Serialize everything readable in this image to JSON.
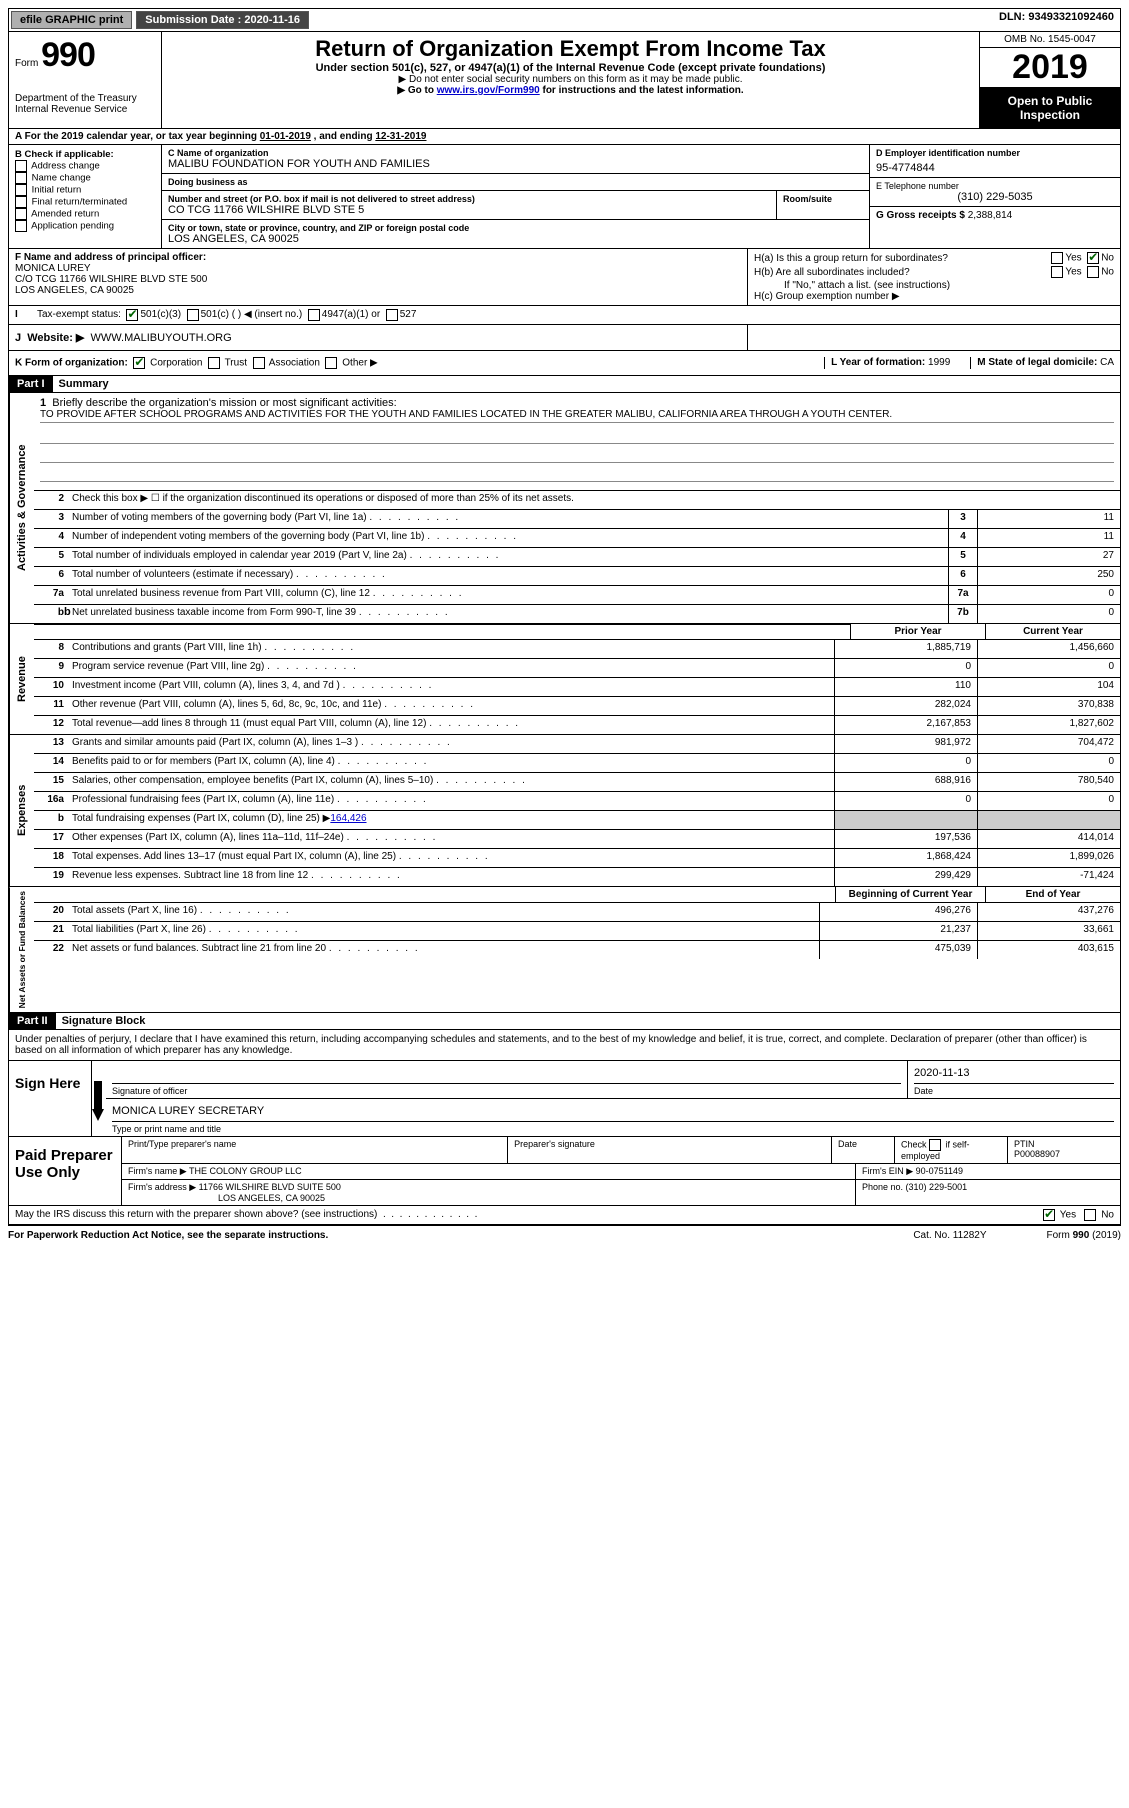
{
  "top": {
    "efile": "efile GRAPHIC print",
    "submission_label": "Submission Date : ",
    "submission_date": "2020-11-16",
    "dln_label": "DLN: ",
    "dln": "93493321092460"
  },
  "header": {
    "form_prefix": "Form",
    "form_number": "990",
    "dept1": "Department of the Treasury",
    "dept2": "Internal Revenue Service",
    "title": "Return of Organization Exempt From Income Tax",
    "sub": "Under section 501(c), 527, or 4947(a)(1) of the Internal Revenue Code (except private foundations)",
    "note1": "▶ Do not enter social security numbers on this form as it may be made public.",
    "note2_pre": "▶ Go to ",
    "note2_link": "www.irs.gov/Form990",
    "note2_post": " for instructions and the latest information.",
    "omb": "OMB No. 1545-0047",
    "year": "2019",
    "open": "Open to Public Inspection"
  },
  "lineA": {
    "text_pre": "A For the 2019 calendar year, or tax year beginning ",
    "begin": "01-01-2019",
    "mid": "   , and ending ",
    "end": "12-31-2019"
  },
  "B": {
    "label": "B Check if applicable:",
    "opts": [
      "Address change",
      "Name change",
      "Initial return",
      "Final return/terminated",
      "Amended return",
      "Application pending"
    ]
  },
  "C": {
    "name_lbl": "C Name of organization",
    "name": "MALIBU FOUNDATION FOR YOUTH AND FAMILIES",
    "dba_lbl": "Doing business as",
    "dba": "",
    "addr_lbl": "Number and street (or P.O. box if mail is not delivered to street address)",
    "addr": "CO TCG 11766 WILSHIRE BLVD STE 5",
    "suite_lbl": "Room/suite",
    "city_lbl": "City or town, state or province, country, and ZIP or foreign postal code",
    "city": "LOS ANGELES, CA  90025"
  },
  "D": {
    "lbl": "D Employer identification number",
    "val": "95-4774844"
  },
  "E": {
    "lbl": "E Telephone number",
    "val": "(310) 229-5035"
  },
  "G": {
    "lbl": "G Gross receipts $ ",
    "val": "2,388,814"
  },
  "F": {
    "lbl": "F Name and address of principal officer:",
    "name": "MONICA LUREY",
    "addr1": "C/O TCG 11766 WILSHIRE BLVD STE 500",
    "addr2": "LOS ANGELES, CA  90025"
  },
  "H": {
    "a": "H(a)  Is this a group return for subordinates?",
    "b": "H(b)  Are all subordinates included?",
    "b_note": "If \"No,\" attach a list. (see instructions)",
    "c": "H(c)  Group exemption number ▶",
    "yes": "Yes",
    "no": "No"
  },
  "I": {
    "lbl": "Tax-exempt status:",
    "o1": "501(c)(3)",
    "o2": "501(c) (   ) ◀ (insert no.)",
    "o3": "4947(a)(1) or",
    "o4": "527"
  },
  "J": {
    "lbl": "Website: ▶",
    "val": "WWW.MALIBUYOUTH.ORG"
  },
  "K": {
    "lbl": "K Form of organization:",
    "o1": "Corporation",
    "o2": "Trust",
    "o3": "Association",
    "o4": "Other ▶"
  },
  "L": {
    "lbl": "L Year of formation: ",
    "val": "1999"
  },
  "M": {
    "lbl": "M State of legal domicile: ",
    "val": "CA"
  },
  "part1": {
    "tab": "Part I",
    "title": "Summary"
  },
  "mission": {
    "q": "Briefly describe the organization's mission or most significant activities:",
    "text": "TO PROVIDE AFTER SCHOOL PROGRAMS AND ACTIVITIES FOR THE YOUTH AND FAMILIES LOCATED IN THE GREATER MALIBU, CALIFORNIA AREA THROUGH A YOUTH CENTER."
  },
  "gov": {
    "l2": "Check this box ▶ ☐ if the organization discontinued its operations or disposed of more than 25% of its net assets.",
    "rows": [
      {
        "n": "3",
        "d": "Number of voting members of the governing body (Part VI, line 1a)",
        "box": "3",
        "v": "11"
      },
      {
        "n": "4",
        "d": "Number of independent voting members of the governing body (Part VI, line 1b)",
        "box": "4",
        "v": "11"
      },
      {
        "n": "5",
        "d": "Total number of individuals employed in calendar year 2019 (Part V, line 2a)",
        "box": "5",
        "v": "27"
      },
      {
        "n": "6",
        "d": "Total number of volunteers (estimate if necessary)",
        "box": "6",
        "v": "250"
      },
      {
        "n": "7a",
        "d": "Total unrelated business revenue from Part VIII, column (C), line 12",
        "box": "7a",
        "v": "0"
      },
      {
        "n": "b",
        "d": "Net unrelated business taxable income from Form 990-T, line 39",
        "box": "7b",
        "v": "0"
      }
    ]
  },
  "colhdr": {
    "prior": "Prior Year",
    "current": "Current Year",
    "boy": "Beginning of Current Year",
    "eoy": "End of Year"
  },
  "rev": [
    {
      "n": "8",
      "d": "Contributions and grants (Part VIII, line 1h)",
      "p": "1,885,719",
      "c": "1,456,660"
    },
    {
      "n": "9",
      "d": "Program service revenue (Part VIII, line 2g)",
      "p": "0",
      "c": "0"
    },
    {
      "n": "10",
      "d": "Investment income (Part VIII, column (A), lines 3, 4, and 7d )",
      "p": "110",
      "c": "104"
    },
    {
      "n": "11",
      "d": "Other revenue (Part VIII, column (A), lines 5, 6d, 8c, 9c, 10c, and 11e)",
      "p": "282,024",
      "c": "370,838"
    },
    {
      "n": "12",
      "d": "Total revenue—add lines 8 through 11 (must equal Part VIII, column (A), line 12)",
      "p": "2,167,853",
      "c": "1,827,602"
    }
  ],
  "exp": [
    {
      "n": "13",
      "d": "Grants and similar amounts paid (Part IX, column (A), lines 1–3 )",
      "p": "981,972",
      "c": "704,472"
    },
    {
      "n": "14",
      "d": "Benefits paid to or for members (Part IX, column (A), line 4)",
      "p": "0",
      "c": "0"
    },
    {
      "n": "15",
      "d": "Salaries, other compensation, employee benefits (Part IX, column (A), lines 5–10)",
      "p": "688,916",
      "c": "780,540"
    },
    {
      "n": "16a",
      "d": "Professional fundraising fees (Part IX, column (A), line 11e)",
      "p": "0",
      "c": "0"
    },
    {
      "n": "b",
      "d": "Total fundraising expenses (Part IX, column (D), line 25) ▶",
      "v": "164,426",
      "shade": true
    },
    {
      "n": "17",
      "d": "Other expenses (Part IX, column (A), lines 11a–11d, 11f–24e)",
      "p": "197,536",
      "c": "414,014"
    },
    {
      "n": "18",
      "d": "Total expenses. Add lines 13–17 (must equal Part IX, column (A), line 25)",
      "p": "1,868,424",
      "c": "1,899,026"
    },
    {
      "n": "19",
      "d": "Revenue less expenses. Subtract line 18 from line 12",
      "p": "299,429",
      "c": "-71,424"
    }
  ],
  "net": [
    {
      "n": "20",
      "d": "Total assets (Part X, line 16)",
      "p": "496,276",
      "c": "437,276"
    },
    {
      "n": "21",
      "d": "Total liabilities (Part X, line 26)",
      "p": "21,237",
      "c": "33,661"
    },
    {
      "n": "22",
      "d": "Net assets or fund balances. Subtract line 21 from line 20",
      "p": "475,039",
      "c": "403,615"
    }
  ],
  "vlabels": {
    "gov": "Activities & Governance",
    "rev": "Revenue",
    "exp": "Expenses",
    "net": "Net Assets or Fund Balances"
  },
  "part2": {
    "tab": "Part II",
    "title": "Signature Block"
  },
  "sig": {
    "intro": "Under penalties of perjury, I declare that I have examined this return, including accompanying schedules and statements, and to the best of my knowledge and belief, it is true, correct, and complete. Declaration of preparer (other than officer) is based on all information of which preparer has any knowledge.",
    "sign_here": "Sign Here",
    "sig_lbl": "Signature of officer",
    "date_lbl": "Date",
    "date": "2020-11-13",
    "name": "MONICA LUREY SECRETARY",
    "name_lbl": "Type or print name and title"
  },
  "prep": {
    "left": "Paid Preparer Use Only",
    "h1": "Print/Type preparer's name",
    "h2": "Preparer's signature",
    "h3": "Date",
    "h4_pre": "Check ",
    "h4_post": " if self-employed",
    "h5": "PTIN",
    "ptin": "P00088907",
    "firm_lbl": "Firm's name    ▶ ",
    "firm": "THE COLONY GROUP LLC",
    "ein_lbl": "Firm's EIN ▶ ",
    "ein": "90-0751149",
    "addr_lbl": "Firm's address ▶ ",
    "addr1": "11766 WILSHIRE BLVD SUITE 500",
    "addr2": "LOS ANGELES, CA  90025",
    "phone_lbl": "Phone no. ",
    "phone": "(310) 229-5001"
  },
  "discuss": {
    "q": "May the IRS discuss this return with the preparer shown above? (see instructions)",
    "yes": "Yes",
    "no": "No"
  },
  "footer": {
    "pra": "For Paperwork Reduction Act Notice, see the separate instructions.",
    "cat": "Cat. No. 11282Y",
    "form": "Form 990 (2019)"
  }
}
